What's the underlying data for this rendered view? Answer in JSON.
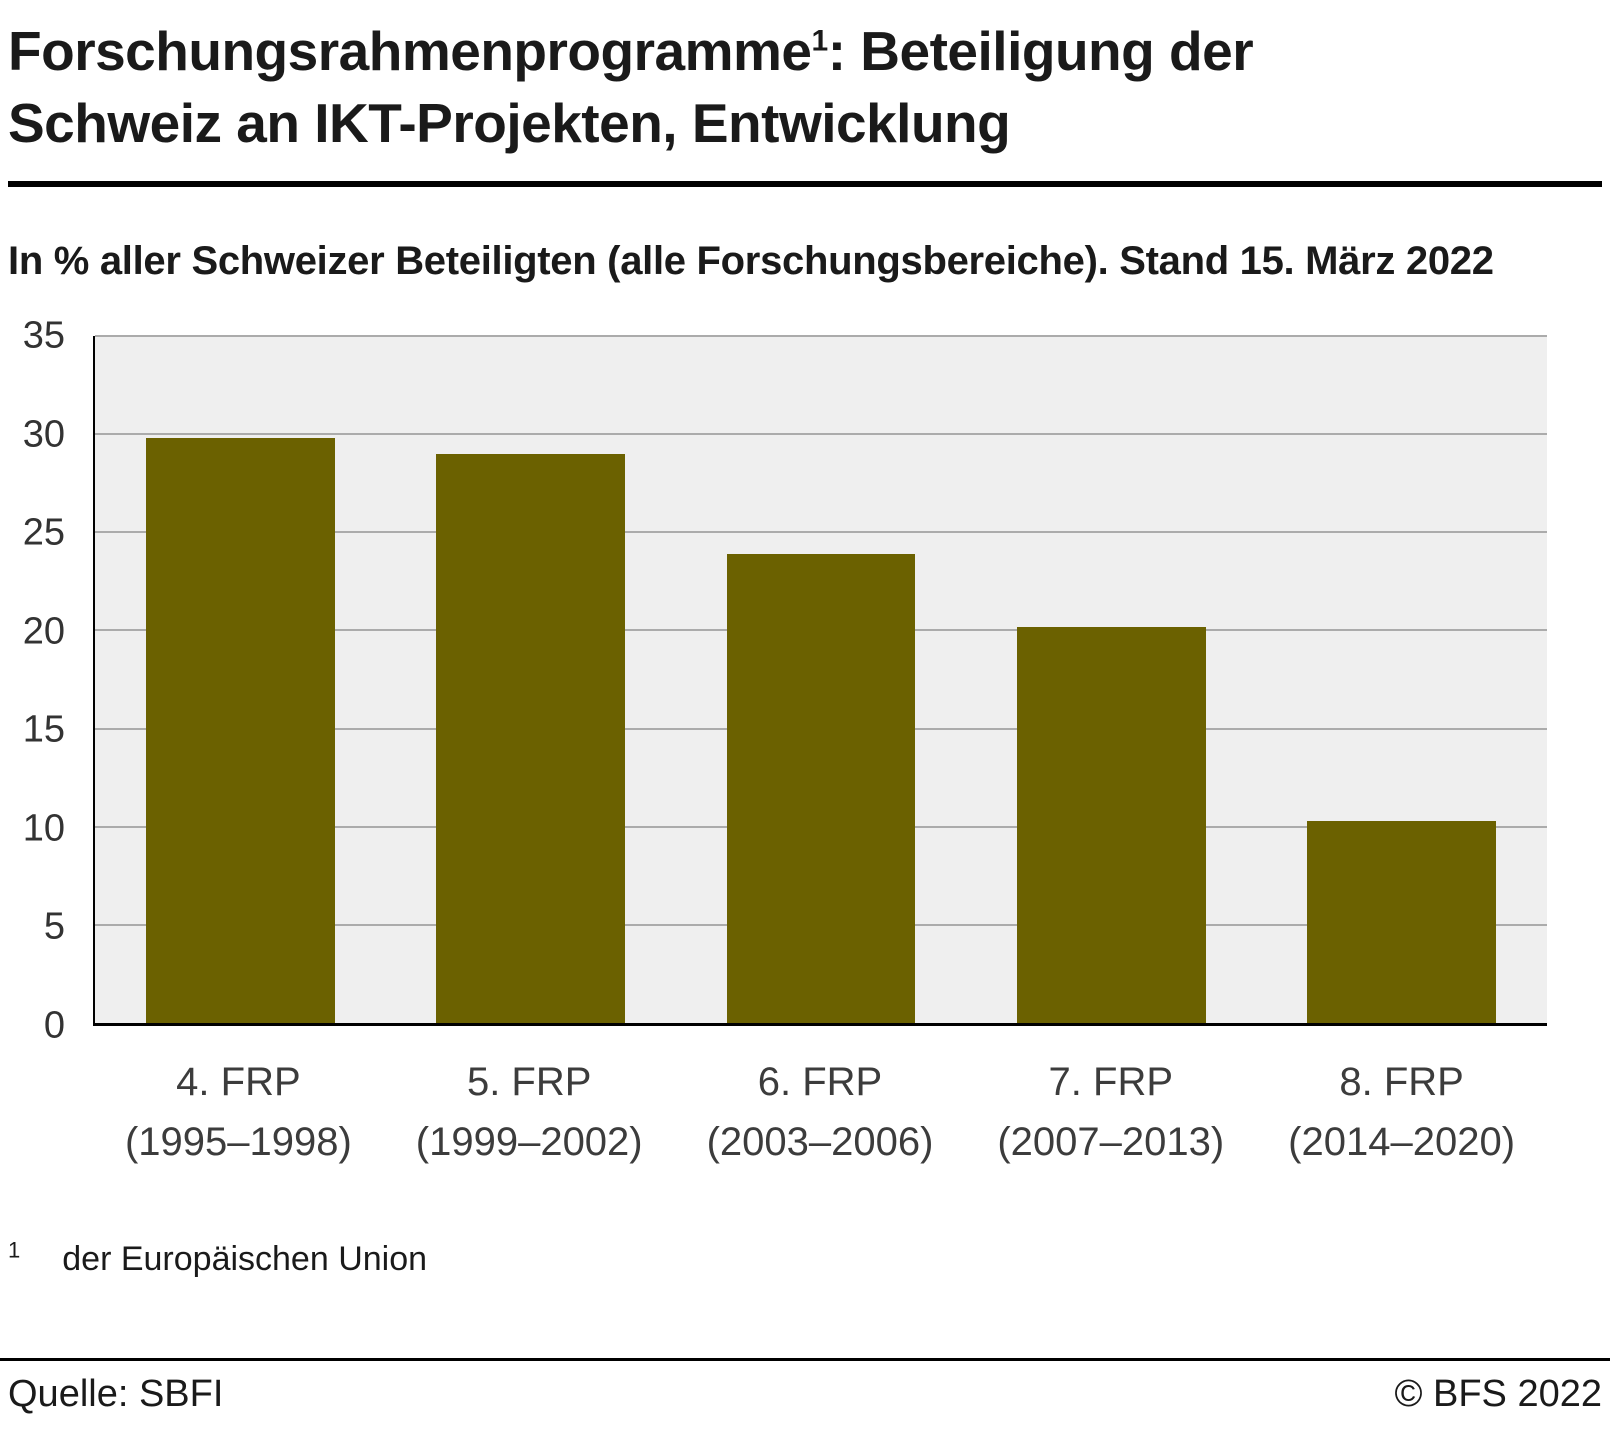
{
  "header": {
    "title_main": "Forschungsrahmenprogramme",
    "title_sup": "1",
    "title_rest": ": Beteiligung der Schweiz an IKT-Projekten, Entwicklung",
    "subtitle": "In % aller Schweizer Beteiligten (alle Forschungsbereiche). Stand 15. März 2022"
  },
  "chart_data": {
    "type": "bar",
    "title": "Forschungsrahmenprogramme (der Europäischen Union): Beteiligung der Schweiz an IKT-Projekten, Entwicklung",
    "subtitle": "In % aller Schweizer Beteiligten (alle Forschungsbereiche). Stand 15. März 2022",
    "categories": [
      "4. FRP\n(1995–1998)",
      "5. FRP\n(1999–2002)",
      "6. FRP\n(2003–2006)",
      "7. FRP\n(2007–2013)",
      "8. FRP\n(2014–2020)"
    ],
    "values": [
      29.8,
      29.0,
      23.9,
      20.2,
      10.3
    ],
    "xlabel": "",
    "ylabel": "",
    "ylim": [
      0,
      35
    ],
    "yticks": [
      0,
      5,
      10,
      15,
      20,
      25,
      30,
      35
    ],
    "grid": true,
    "legend": "none",
    "bar_color": "#6b6100",
    "plot_background": "#efefef",
    "gridline_color": "#ababab"
  },
  "footnote": {
    "marker": "1",
    "text": "der Europäischen Union"
  },
  "footer": {
    "source": "Quelle: SBFI",
    "copyright": "© BFS 2022"
  }
}
